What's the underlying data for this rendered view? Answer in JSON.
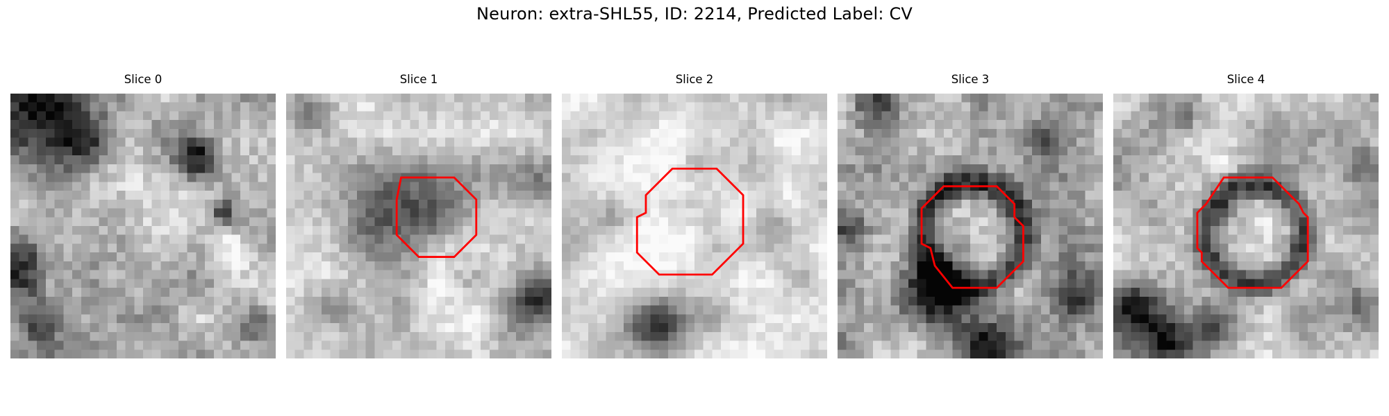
{
  "figure": {
    "title": "Neuron: extra-SHL55, ID: 2214, Predicted Label: CV",
    "contour_color": "#ff0000",
    "colormap": "gray",
    "panels": [
      {
        "title": "Slice 0",
        "has_contour": false,
        "contour": [],
        "dark_blobs": [
          {
            "cx": 3,
            "cy": 1,
            "r": 4.5,
            "v": 0.6
          },
          {
            "cx": 8.5,
            "cy": 5.5,
            "r": 2.2,
            "v": 0.5
          },
          {
            "cx": 1.5,
            "cy": 20,
            "r": 2.4,
            "v": 0.45
          },
          {
            "cx": 3,
            "cy": 26,
            "r": 2,
            "v": 0.4
          },
          {
            "cx": 21,
            "cy": 7,
            "r": 1.5,
            "v": 0.55
          },
          {
            "cx": 24,
            "cy": 13.5,
            "r": 1.1,
            "v": 0.45
          },
          {
            "cx": 28,
            "cy": 26,
            "r": 1.5,
            "v": 0.35
          }
        ],
        "light_blobs": [
          {
            "cx": 15,
            "cy": 12,
            "r": 4,
            "v": 0.12
          },
          {
            "cx": 25,
            "cy": 17.5,
            "r": 1.2,
            "v": 0.25
          }
        ],
        "base": 0.7,
        "noise": 0.22
      },
      {
        "title": "Slice 1",
        "has_contour": true,
        "contour": [
          [
            13,
            9.5
          ],
          [
            19,
            9.5
          ],
          [
            21.5,
            12
          ],
          [
            21.5,
            16
          ],
          [
            19,
            18.5
          ],
          [
            15,
            18.5
          ],
          [
            12.5,
            16
          ],
          [
            12.5,
            12
          ]
        ],
        "dark_blobs": [
          {
            "cx": 11,
            "cy": 13,
            "r": 3.2,
            "v": 0.4
          },
          {
            "cx": 16,
            "cy": 14,
            "r": 3.5,
            "v": 0.22
          },
          {
            "cx": 28.5,
            "cy": 23.5,
            "r": 2.2,
            "v": 0.65
          },
          {
            "cx": 2,
            "cy": 2,
            "r": 1.6,
            "v": 0.35
          },
          {
            "cx": 29,
            "cy": 10,
            "r": 2,
            "v": 0.3
          },
          {
            "cx": 5,
            "cy": 24,
            "r": 1.5,
            "v": 0.25
          }
        ],
        "light_blobs": [
          {
            "cx": 20,
            "cy": 25,
            "r": 5,
            "v": 0.12
          },
          {
            "cx": 4,
            "cy": 13,
            "r": 3,
            "v": 0.1
          }
        ],
        "base": 0.76,
        "noise": 0.18
      },
      {
        "title": "Slice 2",
        "has_contour": true,
        "contour": [
          [
            12.5,
            8.5
          ],
          [
            17.5,
            8.5
          ],
          [
            20.5,
            11.5
          ],
          [
            20.5,
            17
          ],
          [
            17,
            20.5
          ],
          [
            11,
            20.5
          ],
          [
            8.5,
            18
          ],
          [
            8.5,
            14
          ],
          [
            9.5,
            13.5
          ],
          [
            9.5,
            11.5
          ]
        ],
        "dark_blobs": [
          {
            "cx": 10.5,
            "cy": 26.5,
            "r": 2.3,
            "v": 0.6
          },
          {
            "cx": 5.5,
            "cy": 14,
            "r": 1.8,
            "v": 0.3
          },
          {
            "cx": 23.5,
            "cy": 14.5,
            "r": 1.6,
            "v": 0.28
          },
          {
            "cx": 16,
            "cy": 8,
            "r": 1.5,
            "v": 0.25
          },
          {
            "cx": 28,
            "cy": 21,
            "r": 1.3,
            "v": 0.2
          }
        ],
        "light_blobs": [
          {
            "cx": 14.5,
            "cy": 14.5,
            "r": 4,
            "v": 0.12
          }
        ],
        "base": 0.83,
        "noise": 0.14
      },
      {
        "title": "Slice 3",
        "has_contour": true,
        "contour": [
          [
            12,
            10.5
          ],
          [
            18,
            10.5
          ],
          [
            20,
            12.5
          ],
          [
            20,
            14
          ],
          [
            21,
            15
          ],
          [
            21,
            19
          ],
          [
            18,
            22
          ],
          [
            13,
            22
          ],
          [
            11,
            19.5
          ],
          [
            10.5,
            17.5
          ],
          [
            9.5,
            17
          ],
          [
            9.5,
            13
          ]
        ],
        "ring": {
          "cx": 15.3,
          "cy": 16,
          "r": 5.8,
          "w": 1.6,
          "v": 0.55
        },
        "dark_blobs": [
          {
            "cx": 11,
            "cy": 22.5,
            "r": 2.5,
            "v": 0.6
          },
          {
            "cx": 1,
            "cy": 15,
            "r": 1.8,
            "v": 0.45
          },
          {
            "cx": 27,
            "cy": 23,
            "r": 2,
            "v": 0.45
          },
          {
            "cx": 17,
            "cy": 28.5,
            "r": 2.2,
            "v": 0.55
          },
          {
            "cx": 4,
            "cy": 1.5,
            "r": 1.6,
            "v": 0.35
          },
          {
            "cx": 23,
            "cy": 5,
            "r": 1.5,
            "v": 0.3
          }
        ],
        "light_blobs": [
          {
            "cx": 15.5,
            "cy": 15.5,
            "r": 3.5,
            "v": 0.15
          }
        ],
        "base": 0.68,
        "noise": 0.24
      },
      {
        "title": "Slice 4",
        "has_contour": true,
        "contour": [
          [
            12.5,
            9.5
          ],
          [
            18,
            9.5
          ],
          [
            21,
            12.5
          ],
          [
            21.5,
            13.5
          ],
          [
            22,
            14
          ],
          [
            22,
            19
          ],
          [
            19,
            22
          ],
          [
            13,
            22
          ],
          [
            10,
            19
          ],
          [
            10,
            18
          ],
          [
            9.5,
            17.5
          ],
          [
            9.5,
            13.5
          ],
          [
            10.5,
            12.5
          ],
          [
            12.5,
            9.5
          ]
        ],
        "ring": {
          "cx": 16,
          "cy": 16,
          "r": 5.6,
          "w": 1.5,
          "v": 0.5
        },
        "dark_blobs": [
          {
            "cx": 2.5,
            "cy": 24,
            "r": 2.4,
            "v": 0.55
          },
          {
            "cx": 6,
            "cy": 28,
            "r": 2.2,
            "v": 0.55
          },
          {
            "cx": 11,
            "cy": 26.5,
            "r": 1.5,
            "v": 0.35
          },
          {
            "cx": 8,
            "cy": 2.5,
            "r": 1.5,
            "v": 0.3
          },
          {
            "cx": 28,
            "cy": 8,
            "r": 1.5,
            "v": 0.3
          },
          {
            "cx": 28.5,
            "cy": 24,
            "r": 1.5,
            "v": 0.3
          }
        ],
        "light_blobs": [
          {
            "cx": 16,
            "cy": 16,
            "r": 3.2,
            "v": 0.15
          },
          {
            "cx": 12.5,
            "cy": 8,
            "r": 0.8,
            "v": 0.2
          }
        ],
        "base": 0.72,
        "noise": 0.2
      }
    ]
  }
}
